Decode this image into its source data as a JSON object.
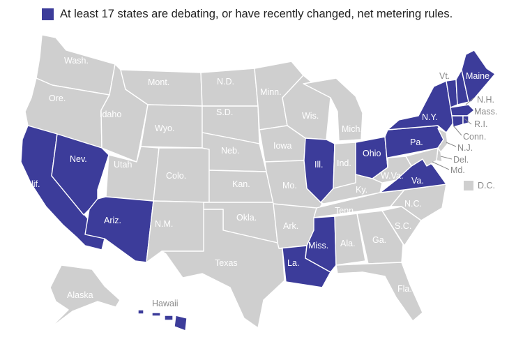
{
  "legend": {
    "text": "At least 17 states are debating, or have recently changed, net metering rules."
  },
  "colors": {
    "highlight": "#3c3c9a",
    "base": "#cfcfcf",
    "border": "#ffffff",
    "label_on_base": "#ffffff",
    "label_on_highlight": "#ffffff",
    "label_outside": "#8a8a8a"
  },
  "states": {
    "wa": {
      "label": "Wash.",
      "highlighted": false
    },
    "or": {
      "label": "Ore.",
      "highlighted": false
    },
    "ca": {
      "label": "Calif.",
      "highlighted": true
    },
    "nv": {
      "label": "Nev.",
      "highlighted": true
    },
    "id": {
      "label": "Idaho",
      "highlighted": false
    },
    "mt": {
      "label": "Mont.",
      "highlighted": false
    },
    "wy": {
      "label": "Wyo.",
      "highlighted": false
    },
    "ut": {
      "label": "Utah",
      "highlighted": false
    },
    "az": {
      "label": "Ariz.",
      "highlighted": true
    },
    "co": {
      "label": "Colo.",
      "highlighted": false
    },
    "nm": {
      "label": "N.M.",
      "highlighted": false
    },
    "nd": {
      "label": "N.D.",
      "highlighted": false
    },
    "sd": {
      "label": "S.D.",
      "highlighted": false
    },
    "ne": {
      "label": "Neb.",
      "highlighted": false
    },
    "ks": {
      "label": "Kan.",
      "highlighted": false
    },
    "ok": {
      "label": "Okla.",
      "highlighted": false
    },
    "tx": {
      "label": "Texas",
      "highlighted": false
    },
    "mn": {
      "label": "Minn.",
      "highlighted": false
    },
    "ia": {
      "label": "Iowa",
      "highlighted": false
    },
    "mo": {
      "label": "Mo.",
      "highlighted": false
    },
    "ar": {
      "label": "Ark.",
      "highlighted": false
    },
    "la": {
      "label": "La.",
      "highlighted": true
    },
    "wi": {
      "label": "Wis.",
      "highlighted": false
    },
    "il": {
      "label": "Ill.",
      "highlighted": true
    },
    "mi": {
      "label": "Mich.",
      "highlighted": false
    },
    "in": {
      "label": "Ind.",
      "highlighted": false
    },
    "oh": {
      "label": "Ohio",
      "highlighted": true
    },
    "ky": {
      "label": "Ky.",
      "highlighted": false
    },
    "tn": {
      "label": "Tenn.",
      "highlighted": false
    },
    "ms": {
      "label": "Miss.",
      "highlighted": true
    },
    "al": {
      "label": "Ala.",
      "highlighted": false
    },
    "ga": {
      "label": "Ga.",
      "highlighted": false
    },
    "fl": {
      "label": "Fla.",
      "highlighted": false
    },
    "sc": {
      "label": "S.C.",
      "highlighted": false
    },
    "nc": {
      "label": "N.C.",
      "highlighted": false
    },
    "va": {
      "label": "Va.",
      "highlighted": true
    },
    "wv": {
      "label": "W.Va.",
      "highlighted": false
    },
    "pa": {
      "label": "Pa.",
      "highlighted": true
    },
    "ny": {
      "label": "N.Y.",
      "highlighted": true
    },
    "vt": {
      "label": "Vt.",
      "highlighted": true
    },
    "nh": {
      "label": "N.H.",
      "highlighted": true
    },
    "me": {
      "label": "Maine",
      "highlighted": true
    },
    "ma": {
      "label": "Mass.",
      "highlighted": true
    },
    "ri": {
      "label": "R.I.",
      "highlighted": true
    },
    "ct": {
      "label": "Conn.",
      "highlighted": true
    },
    "nj": {
      "label": "N.J.",
      "highlighted": false
    },
    "de": {
      "label": "Del.",
      "highlighted": false
    },
    "md": {
      "label": "Md.",
      "highlighted": false
    },
    "dc": {
      "label": "D.C.",
      "highlighted": false
    },
    "ak": {
      "label": "Alaska",
      "highlighted": false
    },
    "hi": {
      "label": "Hawaii",
      "highlighted": true
    }
  }
}
